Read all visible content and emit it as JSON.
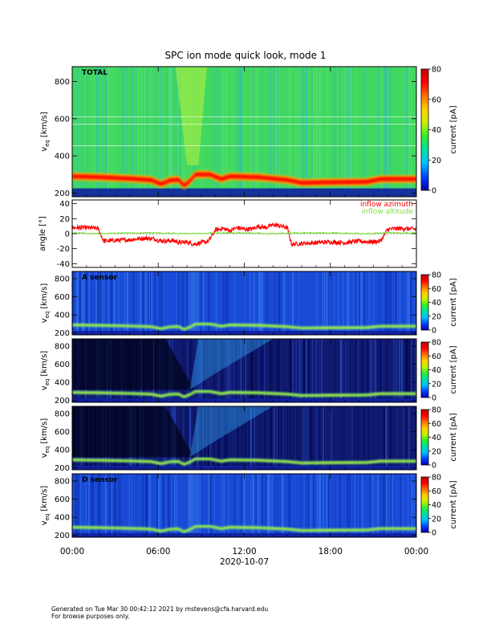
{
  "title": "SPC ion mode quick look, mode 1",
  "x_axis": {
    "ticks": [
      "00:00",
      "06:00",
      "12:00",
      "18:00",
      "00:00"
    ],
    "tick_hours": [
      0,
      6,
      12,
      18,
      24
    ],
    "minor_tick_hours": [
      1,
      2,
      3,
      4,
      5,
      7,
      8,
      9,
      10,
      11,
      13,
      14,
      15,
      16,
      17,
      19,
      20,
      21,
      22,
      23
    ],
    "date_label": "2020-10-07"
  },
  "colorbar": {
    "label": "current [pA]",
    "stops": [
      "#0000aa",
      "#0040ff",
      "#00c0ff",
      "#00e0a0",
      "#30ee30",
      "#c8f000",
      "#ffd000",
      "#ff7000",
      "#ff0000",
      "#c00000"
    ]
  },
  "panels": [
    {
      "kind": "spectrogram",
      "label": "TOTAL",
      "ylabel_main": "v",
      "ylabel_sub": "eq",
      "ylabel_unit": "[km/s]",
      "yrange": [
        180,
        880
      ],
      "yticks": [
        200,
        400,
        600,
        800
      ],
      "cbar_range": [
        0,
        80
      ],
      "cbar_ticks": [
        0,
        20,
        40,
        60,
        80
      ],
      "bg": "green"
    },
    {
      "kind": "line",
      "ylabel": "angle [°]",
      "yrange": [
        -45,
        45
      ],
      "yticks": [
        -40,
        -20,
        0,
        20,
        40
      ],
      "series": [
        {
          "name": "inflow azimuth",
          "color": "#ff0000",
          "x_hours": [
            0,
            1,
            1.8,
            2.2,
            3,
            4,
            5,
            5.8,
            6,
            6.5,
            7,
            7.5,
            8,
            8.5,
            9,
            9.5,
            10,
            10.5,
            11,
            11.5,
            12,
            12.5,
            13,
            13.5,
            14,
            14.6,
            15,
            15.3,
            16,
            17,
            18,
            19,
            20,
            21,
            21.5,
            22,
            23,
            24
          ],
          "values": [
            8,
            8,
            7,
            -10,
            -9,
            -8,
            -6,
            -7,
            -9,
            -10,
            -9,
            -12,
            -11,
            -14,
            -12,
            -10,
            5,
            7,
            4,
            8,
            6,
            6,
            10,
            8,
            12,
            10,
            8,
            -14,
            -13,
            -12,
            -11,
            -12,
            -10,
            -11,
            -10,
            6,
            7,
            6
          ]
        },
        {
          "name": "inflow altitude",
          "color": "#80e040",
          "x_hours": [
            0,
            2,
            4,
            6,
            8,
            10,
            12,
            14,
            16,
            18,
            20,
            22,
            24
          ],
          "values": [
            1,
            0,
            1,
            1,
            0,
            1,
            1,
            0,
            1,
            1,
            0,
            1,
            1
          ]
        }
      ]
    },
    {
      "kind": "spectrogram",
      "label": "A sensor",
      "ylabel_main": "v",
      "ylabel_sub": "eq",
      "ylabel_unit": "[km/s]",
      "yrange": [
        180,
        880
      ],
      "yticks": [
        200,
        400,
        600,
        800
      ],
      "cbar_range": [
        0,
        80
      ],
      "cbar_ticks": [
        0,
        20,
        40,
        60,
        80
      ],
      "bg": "blue"
    },
    {
      "kind": "spectrogram",
      "label": "",
      "ylabel_main": "v",
      "ylabel_sub": "eq",
      "ylabel_unit": "[km/s]",
      "yrange": [
        180,
        880
      ],
      "yticks": [
        200,
        400,
        600,
        800
      ],
      "cbar_range": [
        0,
        80
      ],
      "cbar_ticks": [
        0,
        20,
        40,
        60,
        80
      ],
      "bg": "dark"
    },
    {
      "kind": "spectrogram",
      "label": "",
      "ylabel_main": "v",
      "ylabel_sub": "eq",
      "ylabel_unit": "[km/s]",
      "yrange": [
        180,
        880
      ],
      "yticks": [
        200,
        400,
        600,
        800
      ],
      "cbar_range": [
        0,
        80
      ],
      "cbar_ticks": [
        0,
        20,
        40,
        60,
        80
      ],
      "bg": "dark"
    },
    {
      "kind": "spectrogram",
      "label": "D sensor",
      "ylabel_main": "v",
      "ylabel_sub": "eq",
      "ylabel_unit": "[km/s]",
      "yrange": [
        180,
        880
      ],
      "yticks": [
        200,
        400,
        600,
        800
      ],
      "cbar_range": [
        0,
        80
      ],
      "cbar_ticks": [
        0,
        20,
        40,
        60,
        80
      ],
      "bg": "blue"
    }
  ],
  "chart_data": {
    "type": "heatmap",
    "title": "SPC ion mode quick look, mode 1",
    "xlabel": "2020-10-07",
    "x_ticks": [
      "00:00",
      "06:00",
      "12:00",
      "18:00",
      "00:00"
    ],
    "colorbar_label": "current [pA]",
    "colorbar_range": [
      0,
      80
    ],
    "spectrogram_panels": [
      "TOTAL",
      "A sensor",
      "",
      "",
      "D sensor"
    ],
    "spectrogram_ylabel": "v_eq [km/s]",
    "spectrogram_yrange": [
      180,
      880
    ],
    "line_panel": {
      "type": "line",
      "ylabel": "angle [°]",
      "ylim": [
        -45,
        45
      ],
      "series": [
        "inflow azimuth",
        "inflow altitude"
      ]
    }
  },
  "footer": {
    "line1": "Generated on Tue Mar 30 00:42:12 2021 by mstevens@cfa.harvard.edu",
    "line2": "For browse purposes only."
  }
}
